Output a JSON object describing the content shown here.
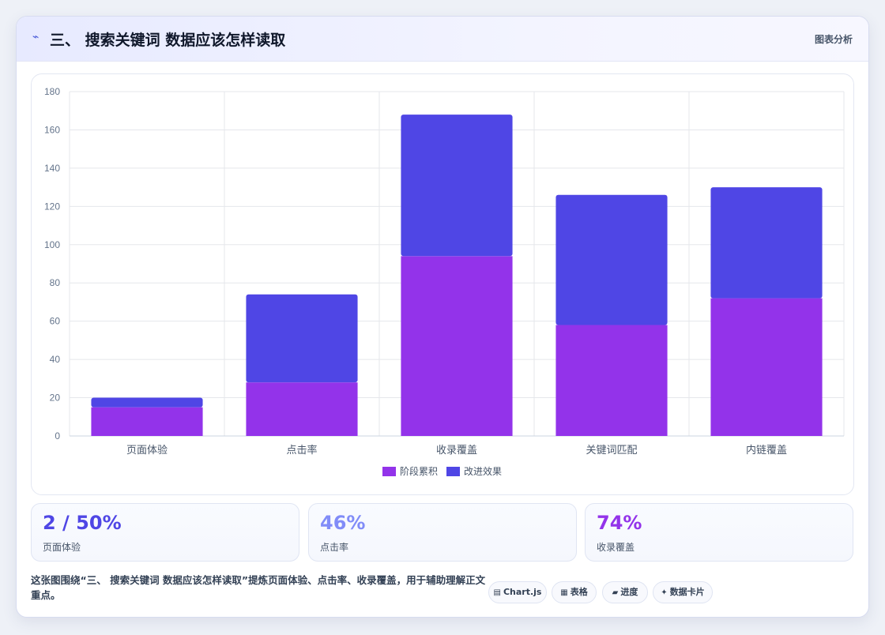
{
  "header": {
    "icon": "chart-line-icon",
    "title": "三、 搜索关键词 数据应该怎样读取",
    "badge": "图表分析"
  },
  "chart_data": {
    "type": "bar",
    "stacked": true,
    "categories": [
      "页面体验",
      "点击率",
      "收录覆盖",
      "关键词匹配",
      "内链覆盖"
    ],
    "series": [
      {
        "name": "阶段累积",
        "color": "#9333ea",
        "values": [
          15,
          28,
          94,
          58,
          72
        ]
      },
      {
        "name": "改进效果",
        "color": "#4f46e5",
        "values": [
          5,
          46,
          74,
          68,
          58
        ]
      }
    ],
    "ylim": [
      0,
      180
    ],
    "yticks": [
      0,
      20,
      40,
      60,
      80,
      100,
      120,
      140,
      160,
      180
    ],
    "grid": true,
    "legend": "bottom"
  },
  "stats": [
    {
      "value": "2 / 50%",
      "label": "页面体验",
      "color": "#4f46e5"
    },
    {
      "value": "46%",
      "label": "点击率",
      "color": "#818cf8"
    },
    {
      "value": "74%",
      "label": "收录覆盖",
      "color": "#9333ea"
    }
  ],
  "footer": {
    "text": "这张图围绕“三、 搜索关键词 数据应该怎样读取”提炼页面体验、点击率、收录覆盖，用于辅助理解正文重点。",
    "chips": [
      {
        "icon": "chart-icon",
        "label": "Chart.js"
      },
      {
        "icon": "table-icon",
        "label": "表格"
      },
      {
        "icon": "progress-icon",
        "label": "进度"
      },
      {
        "icon": "sparkle-icon",
        "label": "数据卡片"
      }
    ]
  }
}
